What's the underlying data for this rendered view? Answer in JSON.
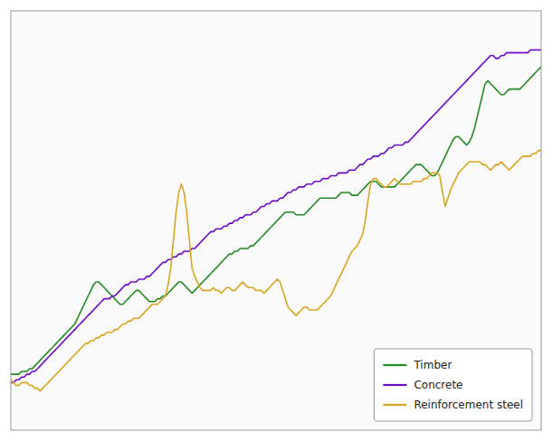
{
  "chart_data": {
    "type": "line",
    "series": [
      {
        "name": "Timber",
        "color": "#228B22",
        "values": [
          100,
          100,
          100,
          100,
          101,
          101,
          101,
          102,
          102,
          103,
          104,
          105,
          106,
          107,
          108,
          109,
          110,
          111,
          112,
          113,
          114,
          115,
          116,
          117,
          118,
          120,
          122,
          124,
          126,
          128,
          130,
          132,
          133,
          133,
          132,
          131,
          130,
          129,
          128,
          127,
          126,
          125,
          125,
          126,
          127,
          128,
          129,
          130,
          130,
          129,
          128,
          127,
          126,
          126,
          126,
          127,
          127,
          128,
          128,
          129,
          130,
          131,
          132,
          133,
          133,
          132,
          131,
          130,
          129,
          130,
          131,
          132,
          133,
          134,
          135,
          136,
          137,
          138,
          139,
          140,
          141,
          142,
          143,
          143,
          144,
          144,
          145,
          145,
          145,
          145,
          146,
          146,
          147,
          148,
          149,
          150,
          151,
          152,
          153,
          154,
          155,
          156,
          157,
          158,
          158,
          158,
          158,
          157,
          157,
          157,
          157,
          158,
          159,
          160,
          161,
          162,
          163,
          163,
          163,
          163,
          163,
          163,
          163,
          164,
          165,
          165,
          165,
          165,
          164,
          164,
          164,
          165,
          166,
          167,
          168,
          169,
          169,
          169,
          168,
          167,
          167,
          167,
          167,
          167,
          167,
          168,
          169,
          170,
          171,
          172,
          173,
          174,
          175,
          175,
          175,
          174,
          173,
          172,
          171,
          171,
          172,
          174,
          176,
          178,
          180,
          182,
          184,
          185,
          185,
          184,
          183,
          182,
          183,
          185,
          188,
          192,
          196,
          200,
          204,
          205,
          204,
          203,
          202,
          201,
          200,
          200,
          201,
          202,
          202,
          202,
          202,
          202,
          203,
          204,
          205,
          206,
          207,
          208,
          209,
          210
        ]
      },
      {
        "name": "Concrete",
        "color": "#6B0AC9",
        "values": [
          97,
          97,
          98,
          98,
          99,
          99,
          100,
          100,
          101,
          101,
          102,
          103,
          104,
          105,
          106,
          107,
          108,
          109,
          110,
          111,
          112,
          113,
          114,
          115,
          116,
          117,
          118,
          119,
          120,
          121,
          122,
          123,
          124,
          125,
          126,
          127,
          127,
          127,
          128,
          128,
          129,
          130,
          131,
          132,
          132,
          133,
          133,
          133,
          134,
          134,
          134,
          135,
          135,
          136,
          137,
          138,
          139,
          140,
          140,
          141,
          141,
          142,
          142,
          143,
          143,
          144,
          144,
          144,
          145,
          145,
          146,
          147,
          148,
          149,
          150,
          151,
          151,
          152,
          152,
          152,
          153,
          153,
          154,
          154,
          155,
          155,
          156,
          156,
          157,
          157,
          157,
          158,
          158,
          159,
          160,
          160,
          161,
          161,
          162,
          162,
          162,
          163,
          163,
          164,
          165,
          165,
          166,
          166,
          167,
          167,
          167,
          168,
          168,
          168,
          169,
          169,
          169,
          170,
          170,
          170,
          171,
          171,
          171,
          172,
          172,
          172,
          172,
          173,
          173,
          173,
          174,
          175,
          175,
          176,
          177,
          177,
          178,
          178,
          178,
          179,
          179,
          180,
          181,
          181,
          182,
          182,
          182,
          182,
          183,
          183,
          184,
          185,
          186,
          187,
          188,
          189,
          190,
          191,
          192,
          193,
          194,
          195,
          196,
          197,
          198,
          199,
          200,
          201,
          202,
          203,
          204,
          205,
          206,
          207,
          208,
          209,
          210,
          211,
          212,
          213,
          214,
          214,
          213,
          213,
          214,
          214,
          215,
          215,
          215,
          215,
          215,
          215,
          215,
          215,
          215,
          216,
          216,
          216,
          216,
          216
        ]
      },
      {
        "name": "Reinforcement steel",
        "color": "#DAA520",
        "values": [
          98,
          97,
          96,
          96,
          97,
          97,
          97,
          96,
          96,
          95,
          95,
          94,
          95,
          96,
          97,
          98,
          99,
          100,
          101,
          102,
          103,
          104,
          105,
          106,
          107,
          108,
          109,
          110,
          111,
          111,
          112,
          112,
          113,
          113,
          114,
          114,
          115,
          115,
          115,
          116,
          116,
          117,
          118,
          118,
          119,
          119,
          120,
          120,
          120,
          121,
          122,
          123,
          124,
          125,
          125,
          125,
          126,
          127,
          128,
          132,
          138,
          148,
          158,
          165,
          168,
          165,
          158,
          148,
          138,
          135,
          133,
          131,
          130,
          130,
          130,
          130,
          131,
          130,
          130,
          129,
          130,
          131,
          131,
          130,
          130,
          131,
          132,
          133,
          132,
          131,
          131,
          131,
          130,
          130,
          130,
          129,
          130,
          131,
          132,
          133,
          134,
          133,
          130,
          127,
          124,
          123,
          122,
          121,
          122,
          123,
          124,
          124,
          123,
          123,
          123,
          123,
          124,
          125,
          126,
          127,
          128,
          130,
          132,
          134,
          136,
          138,
          140,
          142,
          144,
          145,
          146,
          148,
          150,
          155,
          162,
          168,
          170,
          170,
          169,
          168,
          167,
          167,
          168,
          169,
          170,
          169,
          168,
          168,
          168,
          168,
          168,
          169,
          169,
          169,
          169,
          170,
          170,
          171,
          172,
          172,
          172,
          171,
          165,
          160,
          163,
          166,
          168,
          170,
          172,
          173,
          174,
          175,
          176,
          176,
          176,
          176,
          176,
          175,
          175,
          174,
          173,
          174,
          175,
          175,
          176,
          175,
          174,
          173,
          174,
          175,
          176,
          177,
          178,
          178,
          178,
          178,
          179,
          179,
          180,
          180
        ]
      }
    ],
    "ylim": [
      80,
      230
    ],
    "grid": false,
    "tick_labels": false,
    "legend": "lower right"
  }
}
